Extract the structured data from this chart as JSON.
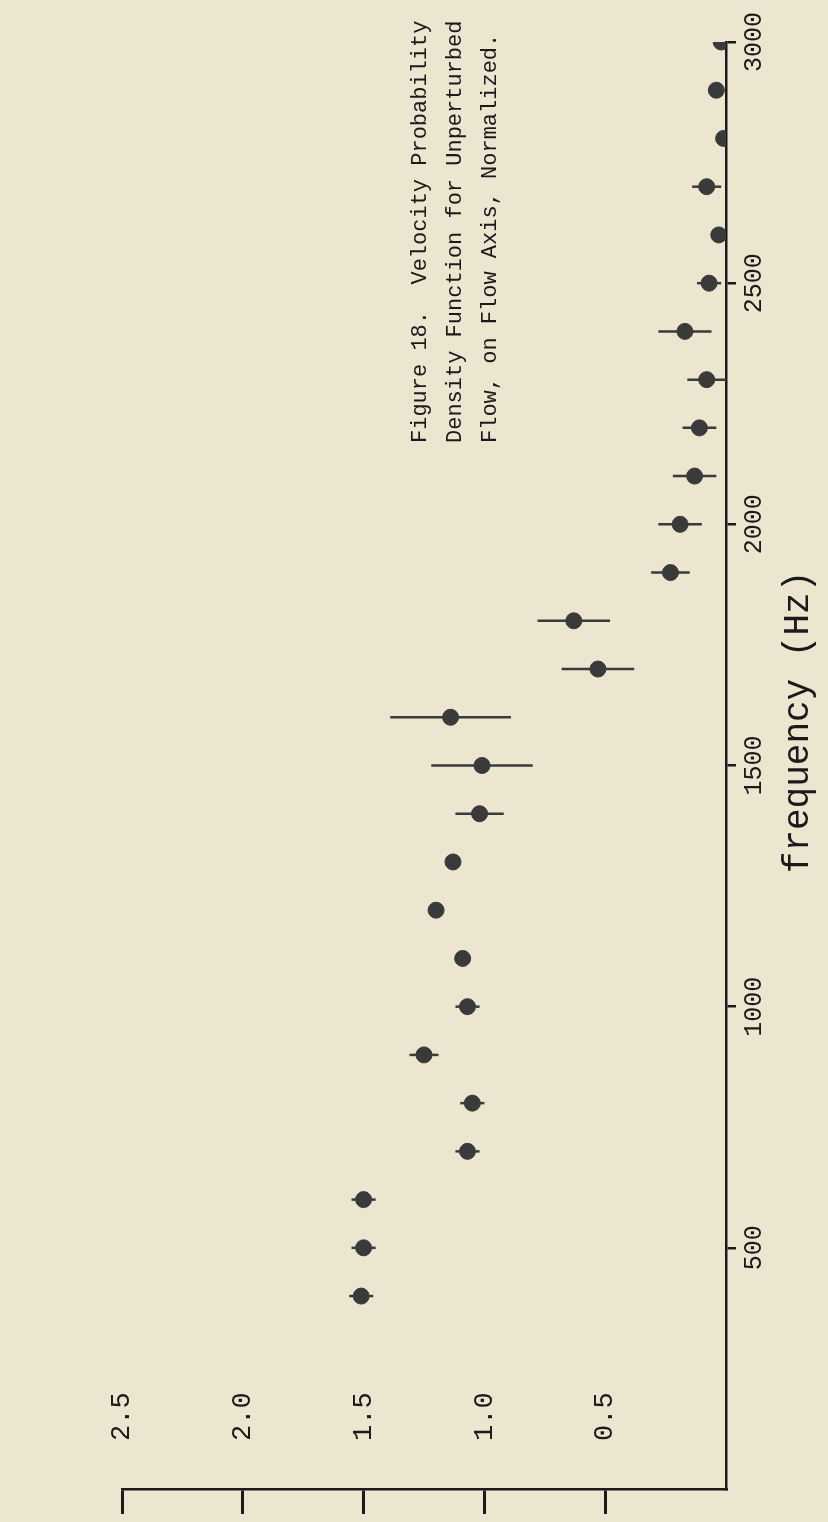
{
  "chart_data": {
    "type": "scatter",
    "title": "Figure 18.  Velocity Probability Density Function for Unperturbed Flow, on Flow Axis, Normalized.",
    "ylabel": "frequency (Hz)",
    "x": [
      1.51,
      1.5,
      1.5,
      1.07,
      1.05,
      1.25,
      1.07,
      1.09,
      1.2,
      1.13,
      1.02,
      1.01,
      1.14,
      0.53,
      0.63,
      0.23,
      0.19,
      0.13,
      0.11,
      0.08,
      0.17,
      0.07,
      0.03,
      0.08,
      0.01,
      0.04,
      0.02
    ],
    "values": [
      400,
      500,
      600,
      700,
      800,
      900,
      1000,
      1100,
      1200,
      1300,
      1400,
      1500,
      1600,
      1700,
      1800,
      1900,
      2000,
      2100,
      2200,
      2300,
      2400,
      2500,
      2600,
      2700,
      2800,
      2900,
      3000
    ],
    "xerrors": [
      0.05,
      0.05,
      0.05,
      0.05,
      0.05,
      0.06,
      0.05,
      null,
      null,
      null,
      0.1,
      0.21,
      0.25,
      0.15,
      0.15,
      0.08,
      0.09,
      0.09,
      0.07,
      0.08,
      0.11,
      0.05,
      null,
      0.06,
      null,
      null,
      null
    ],
    "color": "#3a3a3a",
    "marker": "circle",
    "xlim": [
      2.5,
      0
    ],
    "xticks": [
      0.5,
      {
        "value": 1,
        "label": "1.0"
      },
      1.5,
      {
        "value": 2,
        "label": "2.0"
      },
      2.5
    ],
    "ylim": [
      0,
      3000
    ],
    "yticks": [
      500,
      1000,
      1500,
      2000,
      2500,
      3000
    ],
    "grid": false,
    "legend": false
  }
}
